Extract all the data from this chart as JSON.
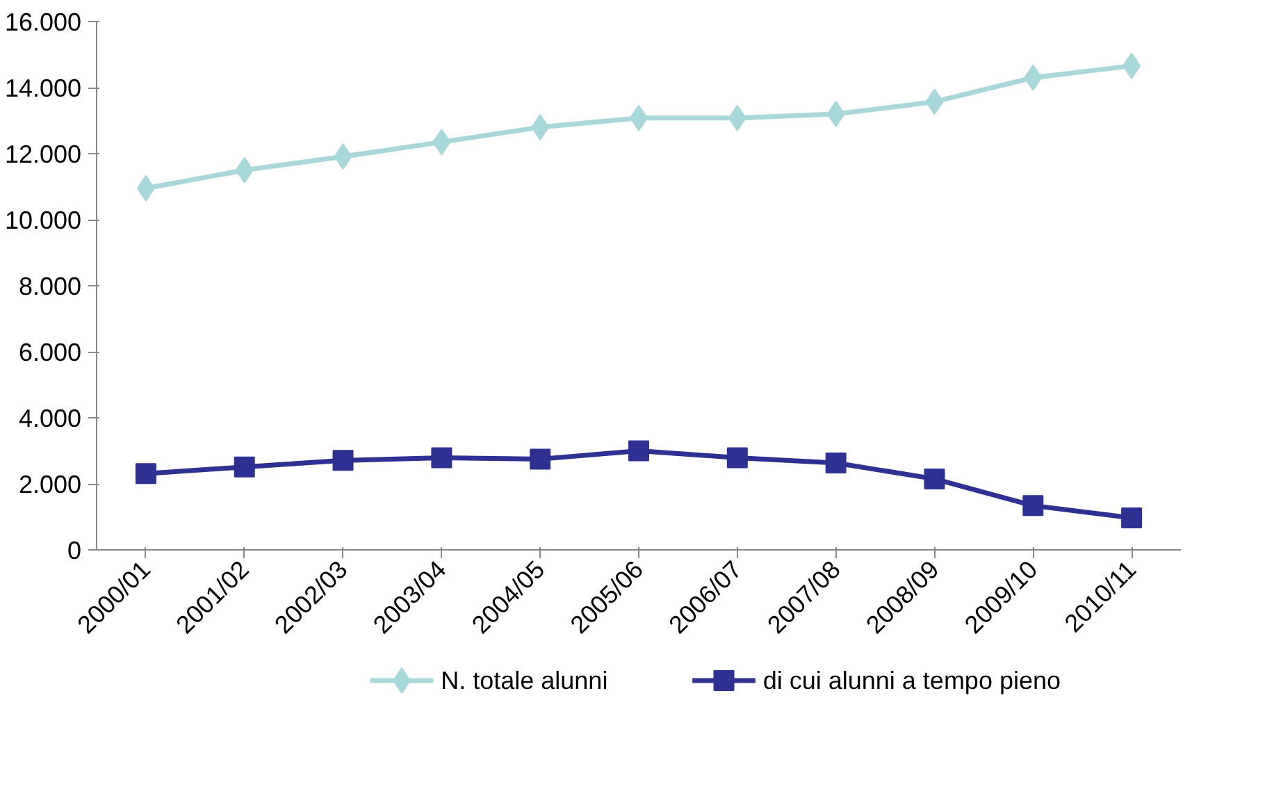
{
  "chart_data": {
    "type": "line",
    "categories": [
      "2000/01",
      "2001/02",
      "2002/03",
      "2003/04",
      "2004/05",
      "2005/06",
      "2006/07",
      "2007/08",
      "2008/09",
      "2009/10",
      "2010/11"
    ],
    "series": [
      {
        "name": "N. totale alunni",
        "color": "#a8d8da",
        "marker": "diamond",
        "values": [
          10950,
          11500,
          11910,
          12350,
          12800,
          13080,
          13080,
          13200,
          13570,
          14300,
          14660
        ]
      },
      {
        "name": "di cui alunni a tempo pieno",
        "color": "#2e3192",
        "marker": "square",
        "values": [
          2310,
          2510,
          2710,
          2790,
          2750,
          3000,
          2790,
          2630,
          2150,
          1340,
          970
        ]
      }
    ],
    "ylim": [
      0,
      16000
    ],
    "yticks": [
      {
        "value": 0,
        "label": "0"
      },
      {
        "value": 2000,
        "label": "2.000"
      },
      {
        "value": 4000,
        "label": "4.000"
      },
      {
        "value": 6000,
        "label": "6.000"
      },
      {
        "value": 8000,
        "label": "8.000"
      },
      {
        "value": 10000,
        "label": "10.000"
      },
      {
        "value": 12000,
        "label": "12.000"
      },
      {
        "value": 14000,
        "label": "14.000"
      },
      {
        "value": 16000,
        "label": "16.000"
      }
    ],
    "grid": false,
    "legend": "bottom",
    "line_style": "solid"
  }
}
